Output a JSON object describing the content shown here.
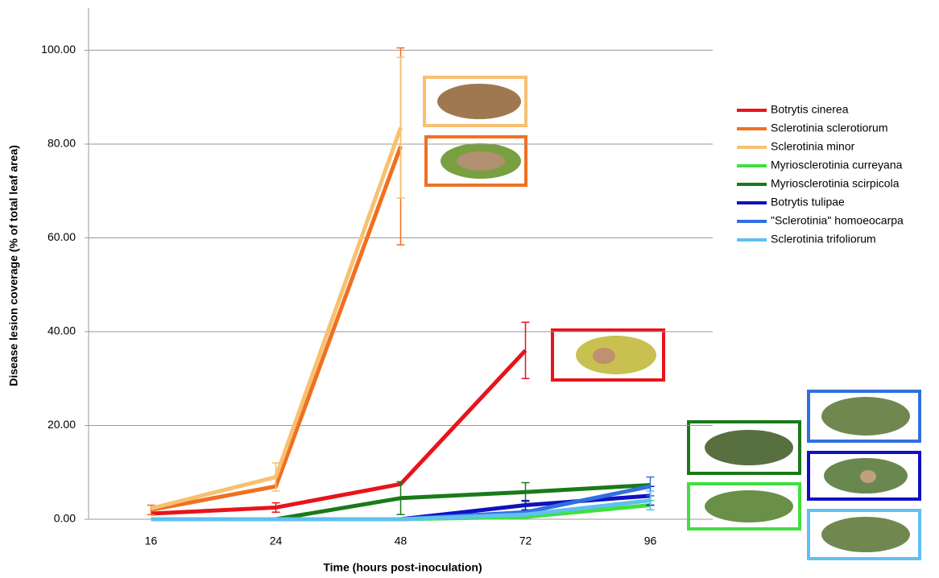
{
  "chart_data": {
    "type": "line",
    "x_label": "Time (hours post-inoculation)",
    "y_label": "Disease lesion coverage (% of total leaf area)",
    "categories": [
      "16",
      "24",
      "48",
      "72",
      "96"
    ],
    "ylim": [
      0,
      109
    ],
    "yticks": [
      {
        "value": 0,
        "label": "0.00"
      },
      {
        "value": 20,
        "label": "20.00"
      },
      {
        "value": 40,
        "label": "40.00"
      },
      {
        "value": 60,
        "label": "60.00"
      },
      {
        "value": 80,
        "label": "80.00"
      },
      {
        "value": 100,
        "label": "100.00"
      }
    ],
    "grid": true,
    "series": [
      {
        "name": "Botrytis cinerea",
        "color": "#e8141b",
        "values": [
          1.2,
          2.5,
          7.5,
          36,
          null
        ],
        "errors": [
          null,
          1,
          null,
          6,
          null
        ]
      },
      {
        "name": "Sclerotinia sclerotiorum",
        "color": "#f07020",
        "values": [
          2,
          7,
          79.5,
          null,
          null
        ],
        "errors": [
          1,
          null,
          21,
          null,
          null
        ]
      },
      {
        "name": "Sclerotinia minor",
        "color": "#f8c070",
        "values": [
          2.3,
          9,
          83.5,
          null,
          null
        ],
        "errors": [
          null,
          3,
          15,
          null,
          null
        ]
      },
      {
        "name": "Myriosclerotinia curreyana",
        "color": "#40e040",
        "values": [
          0,
          0,
          0,
          0.5,
          3
        ],
        "errors": [
          null,
          null,
          null,
          null,
          1
        ]
      },
      {
        "name": "Myriosclerotinia scirpicola",
        "color": "#1a7a1a",
        "values": [
          null,
          0,
          4.5,
          5.8,
          7.3
        ],
        "errors": [
          null,
          null,
          3.5,
          2,
          null
        ]
      },
      {
        "name": "Botrytis tulipae",
        "color": "#1010c0",
        "values": [
          0,
          0,
          0,
          3,
          5
        ],
        "errors": [
          null,
          null,
          null,
          1,
          2
        ]
      },
      {
        "name": "\"Sclerotinia\" homoeocarpa",
        "color": "#3070e0",
        "values": [
          0,
          0,
          0,
          1.5,
          7
        ],
        "errors": [
          null,
          null,
          null,
          null,
          2
        ]
      },
      {
        "name": "Sclerotinia trifoliorum",
        "color": "#60c0f0",
        "values": [
          0,
          0,
          0,
          1,
          4
        ],
        "errors": [
          null,
          null,
          null,
          null,
          2
        ]
      }
    ]
  }
}
